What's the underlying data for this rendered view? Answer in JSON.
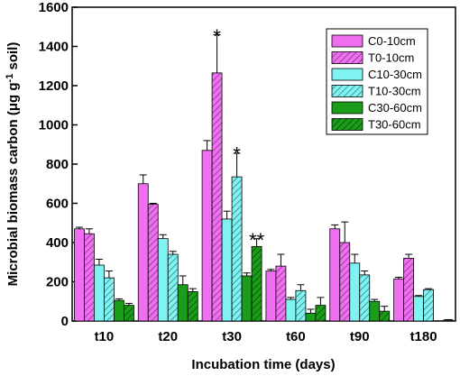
{
  "chart_data": {
    "type": "bar",
    "categories": [
      "t10",
      "t20",
      "t30",
      "t60",
      "t90",
      "t180"
    ],
    "xlabel": "Incubation time (days)",
    "ylabel": "Microbial biomass carbon (μg g",
    "ylabel_sup": "-1",
    "ylabel_tail": " soil)",
    "ylim": [
      0,
      1600
    ],
    "yticks": [
      0,
      200,
      400,
      600,
      800,
      1000,
      1200,
      1400,
      1600
    ],
    "grid": false,
    "legend_position": "top-right",
    "series": [
      {
        "name": "C0-10cm",
        "color": "#f06ef0",
        "hatch": false,
        "values": [
          470,
          700,
          870,
          255,
          470,
          215
        ],
        "errors": [
          8,
          45,
          50,
          8,
          20,
          8
        ]
      },
      {
        "name": "T0-10cm",
        "color": "#f06ef0",
        "hatch": true,
        "values": [
          445,
          595,
          1265,
          280,
          400,
          320
        ],
        "errors": [
          25,
          5,
          195,
          60,
          105,
          20
        ]
      },
      {
        "name": "C10-30cm",
        "color": "#7ff2f2",
        "hatch": false,
        "values": [
          285,
          420,
          520,
          110,
          295,
          125
        ],
        "errors": [
          30,
          20,
          40,
          10,
          45,
          5
        ]
      },
      {
        "name": "T10-30cm",
        "color": "#7ff2f2",
        "hatch": true,
        "values": [
          220,
          340,
          735,
          155,
          235,
          160
        ],
        "errors": [
          35,
          15,
          120,
          30,
          20,
          5
        ]
      },
      {
        "name": "C30-60cm",
        "color": "#1a9e1a",
        "hatch": false,
        "values": [
          105,
          185,
          230,
          40,
          100,
          0
        ],
        "errors": [
          8,
          45,
          15,
          20,
          10,
          0
        ]
      },
      {
        "name": "T30-60cm",
        "color": "#1a9e1a",
        "hatch": true,
        "values": [
          80,
          150,
          380,
          80,
          50,
          5
        ],
        "errors": [
          10,
          15,
          40,
          40,
          25,
          2
        ]
      }
    ],
    "annotations": [
      {
        "text": "*",
        "category": "t30",
        "series": "T0-10cm",
        "y": 1490
      },
      {
        "text": "*",
        "category": "t30",
        "series": "T10-30cm",
        "y": 890
      },
      {
        "text": "**",
        "category": "t30",
        "series": "T30-60cm",
        "y": 450
      }
    ]
  }
}
